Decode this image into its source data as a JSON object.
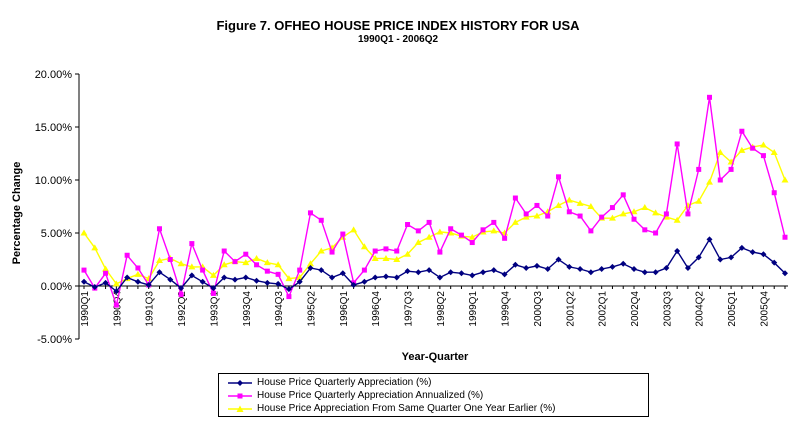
{
  "chart_data": {
    "type": "line",
    "title": "Figure 7. OFHEO HOUSE PRICE INDEX HISTORY FOR USA",
    "subtitle": "1990Q1 - 2006Q2",
    "xlabel": "Year-Quarter",
    "ylabel": "Percentage Change",
    "ylim": [
      -5,
      20
    ],
    "yticks": [
      "-5.00%",
      "0.00%",
      "5.00%",
      "10.00%",
      "15.00%",
      "20.00%"
    ],
    "grid": false,
    "legend_position": "bottom",
    "categories": [
      "1990Q1",
      "1990Q2",
      "1990Q3",
      "1990Q4",
      "1991Q1",
      "1991Q2",
      "1991Q3",
      "1991Q4",
      "1992Q1",
      "1992Q2",
      "1992Q3",
      "1992Q4",
      "1993Q1",
      "1993Q2",
      "1993Q3",
      "1993Q4",
      "1994Q1",
      "1994Q2",
      "1994Q3",
      "1994Q4",
      "1995Q1",
      "1995Q2",
      "1995Q3",
      "1995Q4",
      "1996Q1",
      "1996Q2",
      "1996Q3",
      "1996Q4",
      "1997Q1",
      "1997Q2",
      "1997Q3",
      "1997Q4",
      "1998Q1",
      "1998Q2",
      "1998Q3",
      "1998Q4",
      "1999Q1",
      "1999Q2",
      "1999Q3",
      "1999Q4",
      "2000Q1",
      "2000Q2",
      "2000Q3",
      "2000Q4",
      "2001Q1",
      "2001Q2",
      "2001Q3",
      "2001Q4",
      "2002Q1",
      "2002Q2",
      "2002Q3",
      "2002Q4",
      "2003Q1",
      "2003Q2",
      "2003Q3",
      "2003Q4",
      "2004Q1",
      "2004Q2",
      "2004Q3",
      "2004Q4",
      "2005Q1",
      "2005Q2",
      "2005Q3",
      "2005Q4",
      "2006Q1",
      "2006Q2"
    ],
    "x_tick_labels": [
      "1990Q1",
      "1990Q4",
      "1991Q3",
      "1992Q2",
      "1993Q1",
      "1993Q4",
      "1994Q3",
      "1995Q2",
      "1996Q1",
      "1996Q4",
      "1997Q3",
      "1998Q2",
      "1999Q1",
      "1999Q4",
      "2000Q3",
      "2001Q2",
      "2002Q1",
      "2002Q4",
      "2003Q3",
      "2004Q2",
      "2005Q1",
      "2005Q4"
    ],
    "series": [
      {
        "name": "House Price Quarterly Appreciation (%)",
        "color": "#000080",
        "marker": "diamond",
        "values": [
          0.4,
          -0.1,
          0.3,
          -0.5,
          0.8,
          0.4,
          0.1,
          1.3,
          0.6,
          -0.2,
          1.0,
          0.4,
          -0.2,
          0.8,
          0.6,
          0.8,
          0.5,
          0.3,
          0.2,
          -0.3,
          0.4,
          1.7,
          1.5,
          0.8,
          1.2,
          0.1,
          0.4,
          0.8,
          0.9,
          0.8,
          1.4,
          1.3,
          1.5,
          0.8,
          1.3,
          1.2,
          1.0,
          1.3,
          1.5,
          1.1,
          2.0,
          1.7,
          1.9,
          1.6,
          2.5,
          1.8,
          1.6,
          1.3,
          1.6,
          1.8,
          2.1,
          1.6,
          1.3,
          1.3,
          1.7,
          3.3,
          1.7,
          2.7,
          4.4,
          2.5,
          2.7,
          3.6,
          3.2,
          3.0,
          2.2,
          1.2
        ]
      },
      {
        "name": "House Price Quarterly Appreciation Annualized (%)",
        "color": "#ff00ff",
        "marker": "square",
        "values": [
          1.5,
          -0.2,
          1.2,
          -1.8,
          2.9,
          1.7,
          0.1,
          5.4,
          2.5,
          -0.8,
          4.0,
          1.5,
          -0.7,
          3.3,
          2.3,
          3.0,
          2.0,
          1.4,
          1.1,
          -1.0,
          1.5,
          6.9,
          6.2,
          3.2,
          4.9,
          0.3,
          1.5,
          3.3,
          3.5,
          3.3,
          5.8,
          5.2,
          6.0,
          3.2,
          5.4,
          4.8,
          4.1,
          5.3,
          6.0,
          4.5,
          8.3,
          6.8,
          7.6,
          6.6,
          10.3,
          7.0,
          6.6,
          5.2,
          6.5,
          7.4,
          8.6,
          6.3,
          5.3,
          5.0,
          6.8,
          13.4,
          6.8,
          11.0,
          17.8,
          10.0,
          11.0,
          14.6,
          13.0,
          12.3,
          8.8,
          4.6
        ]
      },
      {
        "name": "House Price Appreciation From Same Quarter One Year Earlier (%)",
        "color": "#ffff00",
        "marker": "triangle",
        "values": [
          5.0,
          3.6,
          1.6,
          0.2,
          0.7,
          1.1,
          0.7,
          2.4,
          2.6,
          2.1,
          1.8,
          1.8,
          1.0,
          2.0,
          2.3,
          2.2,
          2.6,
          2.2,
          2.0,
          0.7,
          0.8,
          2.1,
          3.3,
          3.6,
          4.6,
          5.3,
          3.7,
          2.6,
          2.6,
          2.5,
          3.0,
          4.1,
          4.6,
          5.1,
          5.0,
          4.7,
          4.6,
          5.1,
          5.2,
          5.0,
          6.0,
          6.5,
          6.6,
          7.0,
          7.6,
          8.1,
          7.8,
          7.5,
          6.4,
          6.4,
          6.8,
          7.0,
          7.4,
          6.9,
          6.5,
          6.2,
          7.6,
          8.0,
          9.8,
          12.6,
          11.7,
          12.8,
          13.1,
          13.3,
          12.6,
          10.0
        ]
      }
    ]
  }
}
